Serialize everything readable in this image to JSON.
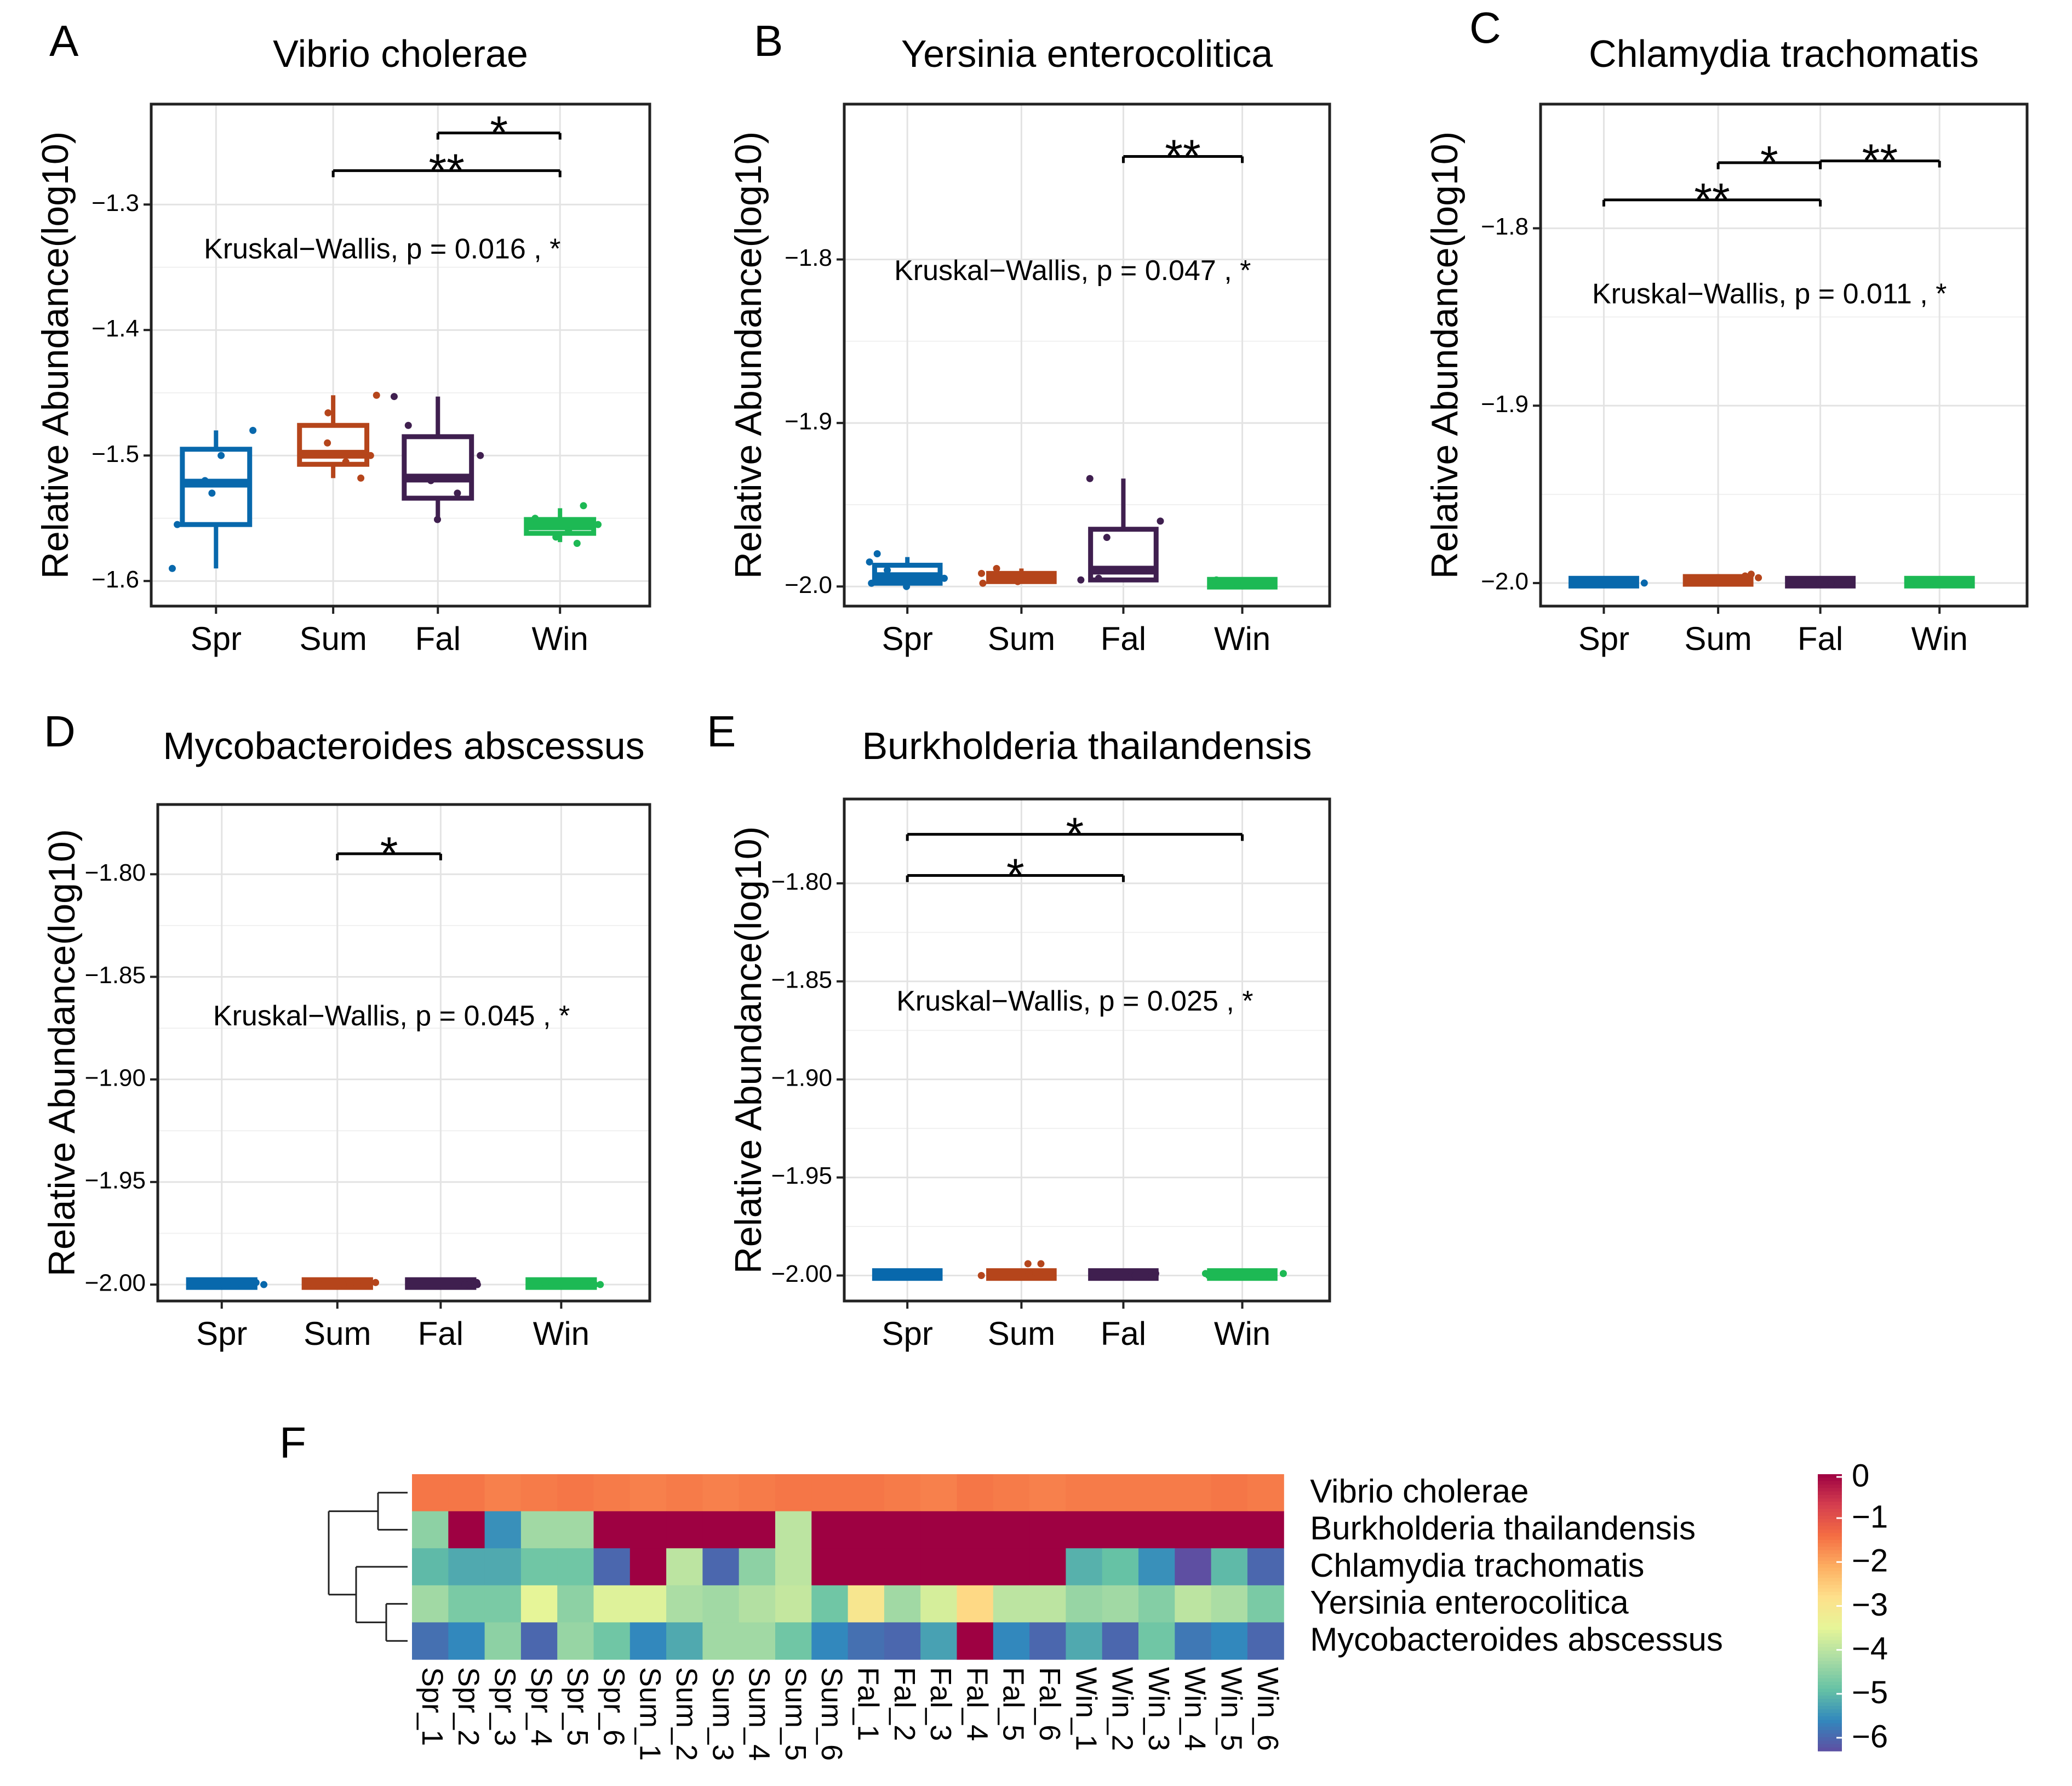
{
  "chart_data": [
    {
      "type": "box",
      "panel_label": "A",
      "title": "Vibrio cholerae",
      "ylabel": "Relative Abundance(log10)",
      "xlabel": "",
      "categories": [
        "Spr",
        "Sum",
        "Fal",
        "Win"
      ],
      "ylim": [
        -1.62,
        -1.22
      ],
      "yticks": [
        -1.6,
        -1.5,
        -1.4,
        -1.3
      ],
      "ytick_labels": [
        "−1.6",
        "−1.5",
        "−1.4",
        "−1.3"
      ],
      "colors": [
        "#0868ac",
        "#b5451b",
        "#3f1f4f",
        "#1db954"
      ],
      "boxes": [
        {
          "category": "Spr",
          "min": -1.59,
          "q1": -1.555,
          "median": -1.522,
          "q3": -1.495,
          "max": -1.48
        },
        {
          "category": "Sum",
          "min": -1.518,
          "q1": -1.507,
          "median": -1.499,
          "q3": -1.476,
          "max": -1.452
        },
        {
          "category": "Fal",
          "min": -1.552,
          "q1": -1.534,
          "median": -1.518,
          "q3": -1.485,
          "max": -1.453
        },
        {
          "category": "Win",
          "min": -1.569,
          "q1": -1.562,
          "median": -1.556,
          "q3": -1.551,
          "max": -1.542
        }
      ],
      "points": [
        [
          -1.59,
          -1.48,
          -1.555,
          -1.5,
          -1.52,
          -1.53
        ],
        [
          -1.452,
          -1.518,
          -1.466,
          -1.5,
          -1.49,
          -1.505
        ],
        [
          -1.551,
          -1.453,
          -1.476,
          -1.52,
          -1.5,
          -1.53
        ],
        [
          -1.54,
          -1.56,
          -1.555,
          -1.565,
          -1.55,
          -1.57
        ]
      ],
      "annotation": "Kruskal−Wallis, p = 0.016 , *",
      "annotation_y": -1.337,
      "annotation_x": 2.45,
      "significance": [
        {
          "from": "Fal",
          "to": "Win",
          "label": "*",
          "y": -1.243
        },
        {
          "from": "Sum",
          "to": "Win",
          "label": "**",
          "y": -1.273
        }
      ]
    },
    {
      "type": "box",
      "panel_label": "B",
      "title": "Yersinia enterocolitica",
      "ylabel": "Relative Abundance(log10)",
      "xlabel": "",
      "categories": [
        "Spr",
        "Sum",
        "Fal",
        "Win"
      ],
      "ylim": [
        -2.012,
        -1.705
      ],
      "yticks": [
        -2.0,
        -1.9,
        -1.8
      ],
      "ytick_labels": [
        "−2.0",
        "−1.9",
        "−1.8"
      ],
      "colors": [
        "#0868ac",
        "#b5451b",
        "#3f1f4f",
        "#1db954"
      ],
      "boxes": [
        {
          "category": "Spr",
          "min": -2.0,
          "q1": -1.998,
          "median": -1.994,
          "q3": -1.987,
          "max": -1.982
        },
        {
          "category": "Sum",
          "min": -1.998,
          "q1": -1.997,
          "median": -1.995,
          "q3": -1.992,
          "max": -1.989
        },
        {
          "category": "Fal",
          "min": -1.997,
          "q1": -1.996,
          "median": -1.99,
          "q3": -1.965,
          "max": -1.934
        },
        {
          "category": "Win",
          "min": -1.999,
          "q1": -1.999,
          "median": -1.998,
          "q3": -1.997,
          "max": -1.996
        }
      ],
      "points": [
        [
          -1.98,
          -1.985,
          -2.0,
          -1.99,
          -1.995,
          -1.998
        ],
        [
          -1.989,
          -1.995,
          -1.998,
          -1.992,
          -1.996,
          -1.997
        ],
        [
          -1.934,
          -1.996,
          -1.99,
          -1.97,
          -1.995,
          -1.96
        ],
        [
          -1.998,
          -1.997,
          -1.999,
          -1.996,
          -1.998,
          -1.999
        ]
      ],
      "annotation": "Kruskal−Wallis, p = 0.047 , *",
      "annotation_y": -1.808,
      "annotation_x": 2.48,
      "significance": [
        {
          "from": "Fal",
          "to": "Win",
          "label": "**",
          "y": -1.737
        }
      ]
    },
    {
      "type": "box",
      "panel_label": "C",
      "title": "Chlamydia trachomatis",
      "ylabel": "Relative Abundance(log10)",
      "xlabel": "",
      "categories": [
        "Spr",
        "Sum",
        "Fal",
        "Win"
      ],
      "ylim": [
        -2.013,
        -1.73
      ],
      "yticks": [
        -2.0,
        -1.9,
        -1.8
      ],
      "ytick_labels": [
        "−2.0",
        "−1.9",
        "−1.8"
      ],
      "colors": [
        "#0868ac",
        "#b5451b",
        "#3f1f4f",
        "#1db954"
      ],
      "boxes": [
        {
          "category": "Spr",
          "min": -2.0,
          "q1": -2.0,
          "median": -2.0,
          "q3": -1.999,
          "max": -1.999
        },
        {
          "category": "Sum",
          "min": -2.0,
          "q1": -2.0,
          "median": -1.999,
          "q3": -1.997,
          "max": -1.995
        },
        {
          "category": "Fal",
          "min": -2.0,
          "q1": -2.0,
          "median": -2.0,
          "q3": -1.999,
          "max": -1.999
        },
        {
          "category": "Win",
          "min": -2.0,
          "q1": -2.0,
          "median": -2.0,
          "q3": -1.999,
          "max": -1.999
        }
      ],
      "points": [
        [
          -2.0,
          -1.999,
          -2.0,
          -2.0,
          -1.999,
          -2.0
        ],
        [
          -1.995,
          -1.997,
          -1.999,
          -2.0,
          -1.998,
          -1.996
        ],
        [
          -2.0,
          -1.999,
          -2.0,
          -2.0,
          -2.0,
          -1.999
        ],
        [
          -2.0,
          -1.999,
          -2.0,
          -2.0,
          -1.999,
          -2.0
        ]
      ],
      "annotation": "Kruskal−Wallis, p = 0.011 , *",
      "annotation_y": -1.838,
      "annotation_x": 2.48,
      "significance": [
        {
          "from": "Fal",
          "to": "Win",
          "label": "**",
          "y": -1.762
        },
        {
          "from": "Sum",
          "to": "Fal",
          "label": "*",
          "y": -1.763
        },
        {
          "from": "Spr",
          "to": "Fal",
          "label": "**",
          "y": -1.784
        }
      ]
    },
    {
      "type": "box",
      "panel_label": "D",
      "title": "Mycobacteroides abscessus",
      "ylabel": "Relative Abundance(log10)",
      "xlabel": "",
      "categories": [
        "Spr",
        "Sum",
        "Fal",
        "Win"
      ],
      "ylim": [
        -2.008,
        -1.766
      ],
      "yticks": [
        -2.0,
        -1.95,
        -1.9,
        -1.85,
        -1.8
      ],
      "ytick_labels": [
        "−2.00",
        "−1.95",
        "−1.90",
        "−1.85",
        "−1.80"
      ],
      "colors": [
        "#0868ac",
        "#b5451b",
        "#3f1f4f",
        "#1db954"
      ],
      "boxes": [
        {
          "category": "Spr",
          "min": -2.0,
          "q1": -2.0,
          "median": -2.0,
          "q3": -1.999,
          "max": -1.999
        },
        {
          "category": "Sum",
          "min": -2.0,
          "q1": -2.0,
          "median": -2.0,
          "q3": -1.999,
          "max": -1.999
        },
        {
          "category": "Fal",
          "min": -2.0,
          "q1": -2.0,
          "median": -2.0,
          "q3": -1.999,
          "max": -1.999
        },
        {
          "category": "Win",
          "min": -2.0,
          "q1": -2.0,
          "median": -2.0,
          "q3": -1.999,
          "max": -1.999
        }
      ],
      "points": [
        [
          -2.0,
          -1.999,
          -2.0,
          -2.0,
          -1.999,
          -2.0
        ],
        [
          -2.0,
          -1.999,
          -2.0,
          -2.0,
          -2.0,
          -1.999
        ],
        [
          -2.0,
          -2.0,
          -1.999,
          -2.0,
          -2.0,
          -2.0
        ],
        [
          -2.0,
          -1.999,
          -2.0,
          -2.0,
          -1.999,
          -2.0
        ]
      ],
      "annotation": "Kruskal−Wallis, p = 0.045 , *",
      "annotation_y": -1.87,
      "annotation_x": 2.5,
      "significance": [
        {
          "from": "Sum",
          "to": "Fal",
          "label": "*",
          "y": -1.79
        }
      ]
    },
    {
      "type": "box",
      "panel_label": "E",
      "title": "Burkholderia thailandensis",
      "ylabel": "Relative Abundance(log10)",
      "xlabel": "",
      "categories": [
        "Spr",
        "Sum",
        "Fal",
        "Win"
      ],
      "ylim": [
        -2.013,
        -1.757
      ],
      "yticks": [
        -2.0,
        -1.95,
        -1.9,
        -1.85,
        -1.8
      ],
      "ytick_labels": [
        "−2.00",
        "−1.95",
        "−1.90",
        "−1.85",
        "−1.80"
      ],
      "colors": [
        "#0868ac",
        "#b5451b",
        "#3f1f4f",
        "#1db954"
      ],
      "boxes": [
        {
          "category": "Spr",
          "min": -2.0,
          "q1": -2.0,
          "median": -2.0,
          "q3": -1.999,
          "max": -1.999
        },
        {
          "category": "Sum",
          "min": -2.0,
          "q1": -2.0,
          "median": -2.0,
          "q3": -1.999,
          "max": -1.999
        },
        {
          "category": "Fal",
          "min": -2.0,
          "q1": -2.0,
          "median": -2.0,
          "q3": -1.999,
          "max": -1.999
        },
        {
          "category": "Win",
          "min": -2.0,
          "q1": -2.0,
          "median": -2.0,
          "q3": -1.999,
          "max": -1.999
        }
      ],
      "points": [
        [
          -2.0,
          -1.999,
          -2.0,
          -2.0,
          -1.999,
          -2.0
        ],
        [
          -1.994,
          -1.994,
          -2.0,
          -2.0,
          -1.999,
          -2.0
        ],
        [
          -2.0,
          -2.0,
          -1.999,
          -2.0,
          -2.0,
          -2.0
        ],
        [
          -2.0,
          -1.999,
          -2.0,
          -2.0,
          -1.999,
          -2.0
        ]
      ],
      "annotation": "Kruskal−Wallis, p = 0.025 , *",
      "annotation_y": -1.861,
      "annotation_x": 2.5,
      "significance": [
        {
          "from": "Spr",
          "to": "Win",
          "label": "*",
          "y": -1.775
        },
        {
          "from": "Spr",
          "to": "Fal",
          "label": "*",
          "y": -1.796
        }
      ]
    },
    {
      "type": "heatmap",
      "panel_label": "F",
      "rows": [
        "Vibrio cholerae",
        "Burkholderia thailandensis",
        "Chlamydia trachomatis",
        "Yersinia enterocolitica",
        "Mycobacteroides abscessus"
      ],
      "columns": [
        "Spr_1",
        "Spr_2",
        "Spr_3",
        "Spr_4",
        "Spr_5",
        "Spr_6",
        "Sum_1",
        "Sum_2",
        "Sum_3",
        "Sum_4",
        "Sum_5",
        "Sum_6",
        "Fal_1",
        "Fal_2",
        "Fal_3",
        "Fal_4",
        "Fal_5",
        "Fal_6",
        "Win_1",
        "Win_2",
        "Win_3",
        "Win_4",
        "Win_5",
        "Win_6"
      ],
      "values": [
        [
          -1.5,
          -1.5,
          -1.6,
          -1.55,
          -1.5,
          -1.55,
          -1.6,
          -1.55,
          -1.6,
          -1.55,
          -1.5,
          -1.5,
          -1.5,
          -1.55,
          -1.6,
          -1.5,
          -1.55,
          -1.6,
          -1.55,
          -1.55,
          -1.55,
          -1.55,
          -1.5,
          -1.55
        ],
        [
          -4.5,
          0,
          -5.5,
          -4.3,
          -4.3,
          0,
          0,
          0,
          0,
          0,
          -4.0,
          0,
          0,
          0,
          0,
          0,
          0,
          0,
          0,
          0,
          0,
          0,
          0,
          0
        ],
        [
          -5.0,
          -5.2,
          -5.2,
          -4.8,
          -4.8,
          -6.0,
          0,
          -4.0,
          -6.0,
          -4.5,
          -4.0,
          0,
          0,
          0,
          0,
          0,
          0,
          0,
          -5.1,
          -4.9,
          -5.5,
          -6.3,
          -5.0,
          -6.0
        ],
        [
          -4.3,
          -4.7,
          -4.7,
          -3.5,
          -4.5,
          -3.6,
          -3.6,
          -4.2,
          -4.3,
          -4.1,
          -3.9,
          -4.8,
          -3.0,
          -4.3,
          -3.7,
          -2.7,
          -4.0,
          -4.0,
          -4.4,
          -4.3,
          -4.6,
          -4.0,
          -4.2,
          -4.7
        ],
        [
          -5.9,
          -5.6,
          -4.5,
          -6.0,
          -4.4,
          -4.8,
          -5.6,
          -5.2,
          -4.3,
          -4.3,
          -4.8,
          -5.6,
          -5.9,
          -6.0,
          -5.3,
          0,
          -5.6,
          -6.0,
          -5.2,
          -6.0,
          -4.8,
          -5.8,
          -5.6,
          -6.0
        ]
      ],
      "colorbar": {
        "min": -6.3,
        "max": 0,
        "ticks": [
          0,
          -1,
          -2,
          -3,
          -4,
          -5,
          -6
        ],
        "tick_labels": [
          "0",
          "−1",
          "−2",
          "−3",
          "−4",
          "−5",
          "−6"
        ]
      },
      "palette": [
        "#5e4fa2",
        "#3288bd",
        "#66c2a5",
        "#abdda4",
        "#e6f598",
        "#fee08b",
        "#fdae61",
        "#f46d43",
        "#d53e4f",
        "#9e0142"
      ]
    }
  ]
}
